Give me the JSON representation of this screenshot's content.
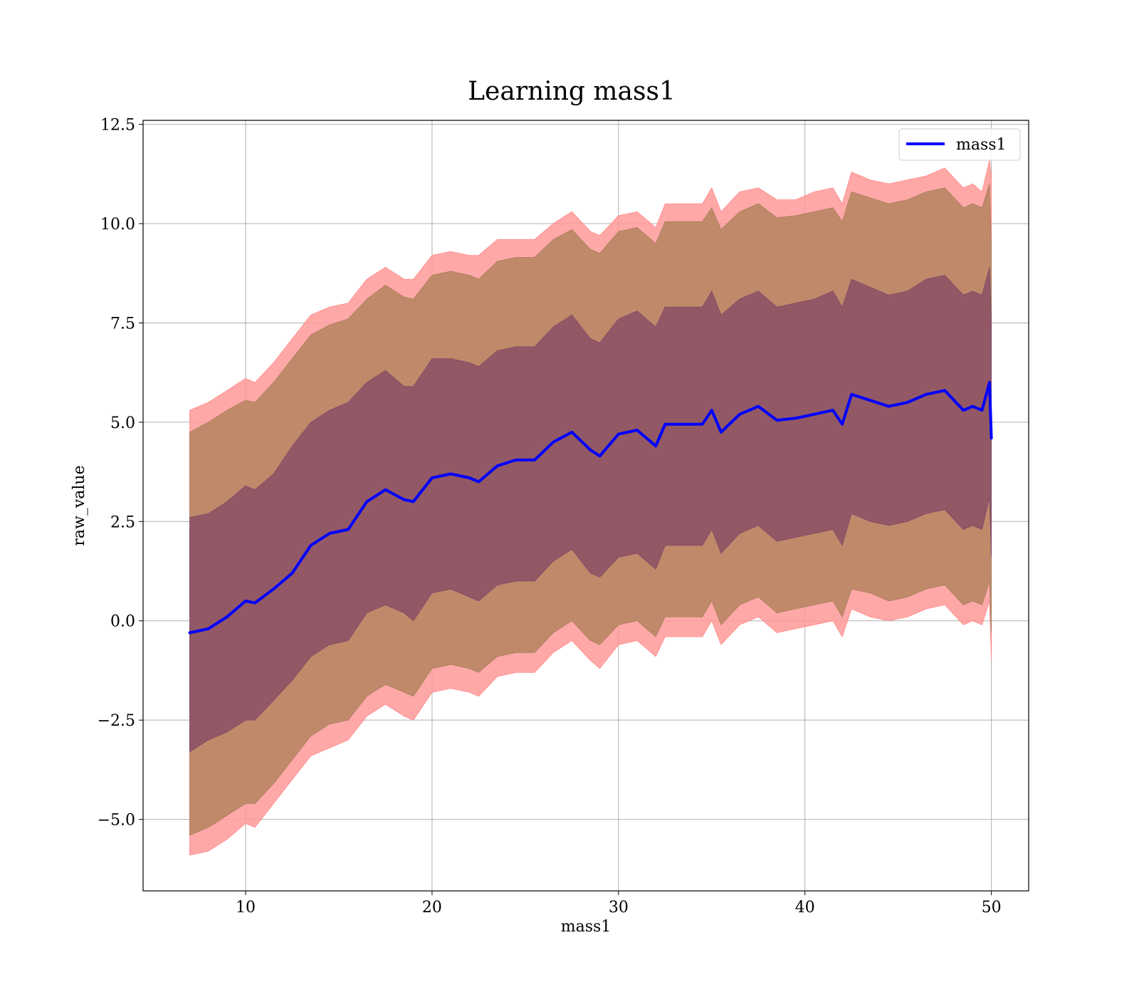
{
  "chart_data": {
    "type": "line",
    "title": "Learning mass1",
    "xlabel": "mass1",
    "ylabel": "raw_value",
    "xlim": [
      4.5,
      52
    ],
    "ylim": [
      -6.8,
      12.6
    ],
    "xticks": [
      10,
      20,
      30,
      40,
      50
    ],
    "yticks": [
      -5.0,
      -2.5,
      0.0,
      2.5,
      5.0,
      7.5,
      10.0,
      12.5
    ],
    "xtick_labels": [
      "10",
      "20",
      "30",
      "40",
      "50"
    ],
    "ytick_labels": [
      "−5.0",
      "−2.5",
      "0.0",
      "2.5",
      "5.0",
      "7.5",
      "10.0",
      "12.5"
    ],
    "grid": true,
    "legend": {
      "position": "top-right",
      "entries": [
        "mass1"
      ]
    },
    "colors": {
      "line": "#0000ff",
      "band_outer": "#ff9999",
      "band_middle": "#c08a6a",
      "band_inner": "#8f5565",
      "grid": "#b0b0b0"
    },
    "series": [
      {
        "name": "mass1",
        "x": [
          7.0,
          8.0,
          9.0,
          10.0,
          10.5,
          11.5,
          12.5,
          13.5,
          14.5,
          15.5,
          16.5,
          17.5,
          18.5,
          19.0,
          20.0,
          21.0,
          22.0,
          22.5,
          23.5,
          24.5,
          25.5,
          26.5,
          27.5,
          28.5,
          29.0,
          30.0,
          31.0,
          32.0,
          32.5,
          33.5,
          34.5,
          35.0,
          35.5,
          36.5,
          37.5,
          38.5,
          39.5,
          40.5,
          41.5,
          42.0,
          42.5,
          43.5,
          44.5,
          45.5,
          46.5,
          47.5,
          48.5,
          49.0,
          49.5,
          49.9,
          50.0
        ],
        "mean": [
          -0.3,
          -0.2,
          0.1,
          0.5,
          0.45,
          0.8,
          1.2,
          1.9,
          2.2,
          2.3,
          3.0,
          3.3,
          3.05,
          3.0,
          3.6,
          3.7,
          3.6,
          3.5,
          3.9,
          4.05,
          4.05,
          4.5,
          4.75,
          4.3,
          4.15,
          4.7,
          4.8,
          4.4,
          4.95,
          4.95,
          4.95,
          5.3,
          4.75,
          5.2,
          5.4,
          5.05,
          5.1,
          5.2,
          5.3,
          4.95,
          5.7,
          5.55,
          5.4,
          5.5,
          5.7,
          5.8,
          5.3,
          5.4,
          5.3,
          6.0,
          4.6
        ],
        "upper2": [
          5.3,
          5.5,
          5.8,
          6.1,
          6.0,
          6.5,
          7.1,
          7.7,
          7.9,
          8.0,
          8.6,
          8.9,
          8.6,
          8.6,
          9.2,
          9.3,
          9.2,
          9.2,
          9.6,
          9.6,
          9.6,
          10.0,
          10.3,
          9.8,
          9.7,
          10.2,
          10.3,
          9.9,
          10.5,
          10.5,
          10.5,
          10.9,
          10.3,
          10.8,
          10.9,
          10.6,
          10.6,
          10.8,
          10.9,
          10.5,
          11.3,
          11.1,
          11.0,
          11.1,
          11.2,
          11.4,
          10.9,
          11.0,
          10.8,
          11.6,
          11.2
        ],
        "upper1": [
          4.75,
          5.0,
          5.3,
          5.55,
          5.5,
          6.0,
          6.6,
          7.2,
          7.45,
          7.6,
          8.1,
          8.45,
          8.15,
          8.1,
          8.7,
          8.8,
          8.7,
          8.6,
          9.05,
          9.15,
          9.15,
          9.6,
          9.85,
          9.35,
          9.25,
          9.8,
          9.9,
          9.5,
          10.05,
          10.05,
          10.05,
          10.4,
          9.85,
          10.3,
          10.5,
          10.15,
          10.2,
          10.3,
          10.4,
          10.05,
          10.8,
          10.65,
          10.5,
          10.6,
          10.8,
          10.9,
          10.4,
          10.5,
          10.4,
          11.0,
          9.5
        ],
        "upper0": [
          2.6,
          2.7,
          3.0,
          3.4,
          3.3,
          3.7,
          4.4,
          5.0,
          5.3,
          5.5,
          6.0,
          6.3,
          5.9,
          5.9,
          6.6,
          6.6,
          6.5,
          6.4,
          6.8,
          6.9,
          6.9,
          7.4,
          7.7,
          7.1,
          7.0,
          7.6,
          7.8,
          7.4,
          7.9,
          7.9,
          7.9,
          8.3,
          7.7,
          8.1,
          8.3,
          7.9,
          8.0,
          8.1,
          8.3,
          7.9,
          8.6,
          8.4,
          8.2,
          8.3,
          8.6,
          8.7,
          8.2,
          8.3,
          8.2,
          8.9,
          7.6
        ],
        "lower0": [
          -3.3,
          -3.0,
          -2.8,
          -2.5,
          -2.5,
          -2.0,
          -1.5,
          -0.9,
          -0.6,
          -0.5,
          0.2,
          0.4,
          0.2,
          0.0,
          0.7,
          0.8,
          0.6,
          0.5,
          0.9,
          1.0,
          1.0,
          1.5,
          1.8,
          1.2,
          1.1,
          1.6,
          1.7,
          1.3,
          1.9,
          1.9,
          1.9,
          2.3,
          1.7,
          2.2,
          2.4,
          2.0,
          2.1,
          2.2,
          2.3,
          1.9,
          2.7,
          2.5,
          2.4,
          2.5,
          2.7,
          2.8,
          2.3,
          2.4,
          2.3,
          3.1,
          1.6
        ],
        "lower1": [
          -5.4,
          -5.2,
          -4.9,
          -4.6,
          -4.6,
          -4.1,
          -3.5,
          -2.9,
          -2.6,
          -2.5,
          -1.9,
          -1.6,
          -1.8,
          -1.9,
          -1.2,
          -1.1,
          -1.2,
          -1.3,
          -0.9,
          -0.8,
          -0.8,
          -0.3,
          0.0,
          -0.5,
          -0.6,
          -0.1,
          0.0,
          -0.4,
          0.1,
          0.1,
          0.1,
          0.5,
          -0.1,
          0.4,
          0.6,
          0.2,
          0.3,
          0.4,
          0.5,
          0.1,
          0.8,
          0.7,
          0.5,
          0.6,
          0.8,
          0.9,
          0.4,
          0.5,
          0.4,
          1.0,
          -0.3
        ],
        "lower2": [
          -5.9,
          -5.8,
          -5.5,
          -5.1,
          -5.2,
          -4.6,
          -4.0,
          -3.4,
          -3.2,
          -3.0,
          -2.4,
          -2.1,
          -2.4,
          -2.5,
          -1.8,
          -1.7,
          -1.8,
          -1.9,
          -1.4,
          -1.3,
          -1.3,
          -0.8,
          -0.5,
          -1.0,
          -1.2,
          -0.6,
          -0.5,
          -0.9,
          -0.4,
          -0.4,
          -0.4,
          0.0,
          -0.6,
          -0.1,
          0.1,
          -0.3,
          -0.2,
          -0.1,
          0.0,
          -0.4,
          0.3,
          0.1,
          0.0,
          0.1,
          0.3,
          0.4,
          -0.1,
          0.0,
          -0.1,
          0.5,
          -1.0
        ]
      }
    ]
  }
}
